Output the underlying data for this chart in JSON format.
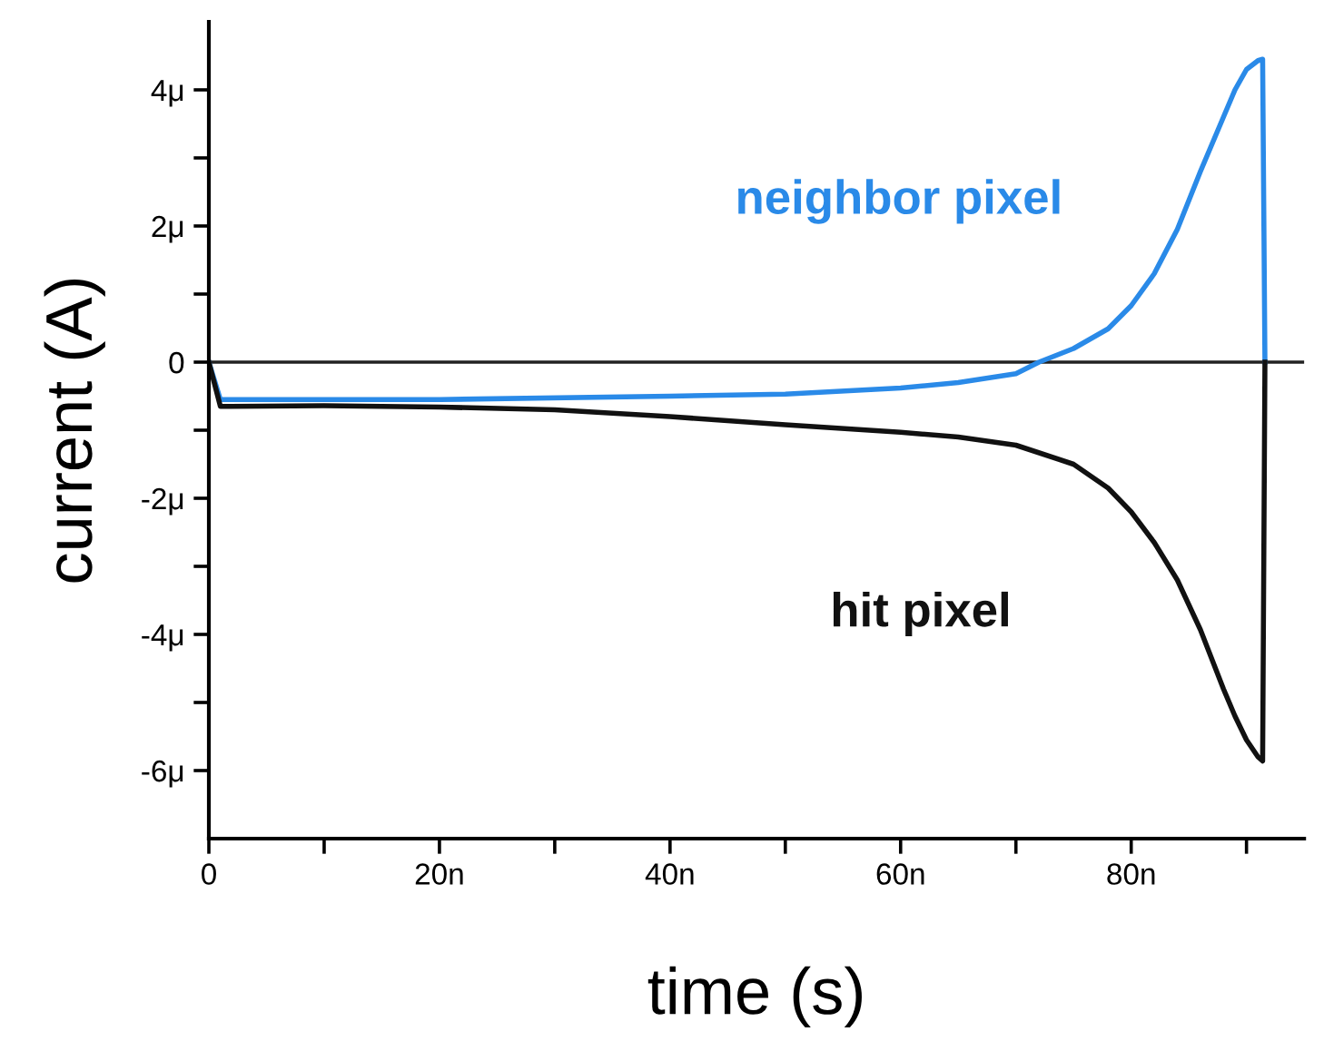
{
  "chart_data": {
    "type": "line",
    "xlabel": "time (s)",
    "ylabel": "current (A)",
    "xlim": [
      0,
      95
    ],
    "ylim": [
      -7,
      5
    ],
    "xticks": [
      {
        "value": 0,
        "label": "0"
      },
      {
        "value": 10,
        "label": null
      },
      {
        "value": 20,
        "label": "20n"
      },
      {
        "value": 30,
        "label": null
      },
      {
        "value": 40,
        "label": "40n"
      },
      {
        "value": 50,
        "label": null
      },
      {
        "value": 60,
        "label": "60n"
      },
      {
        "value": 70,
        "label": null
      },
      {
        "value": 80,
        "label": "80n"
      },
      {
        "value": 90,
        "label": null
      }
    ],
    "yticks": [
      {
        "value": -6,
        "label": "-6μ"
      },
      {
        "value": -5,
        "label": null
      },
      {
        "value": -4,
        "label": "-4μ"
      },
      {
        "value": -3,
        "label": null
      },
      {
        "value": -2,
        "label": "-2μ"
      },
      {
        "value": -1,
        "label": null
      },
      {
        "value": 0,
        "label": "0"
      },
      {
        "value": 1,
        "label": null
      },
      {
        "value": 2,
        "label": "2μ"
      },
      {
        "value": 3,
        "label": null
      },
      {
        "value": 4,
        "label": "4μ"
      }
    ],
    "ref_lines": [
      {
        "axis": "y",
        "value": 0,
        "label": null,
        "color": "#222222"
      }
    ],
    "grid": false,
    "legend": false,
    "marker": "none",
    "line_style": "solid",
    "series": [
      {
        "name": "neighbor pixel",
        "color": "#2a8ae8",
        "x": [
          0,
          1,
          20,
          40,
          50,
          60,
          65,
          70,
          72,
          75,
          78,
          80,
          82,
          84,
          86,
          88,
          89,
          90,
          91,
          91.4,
          91.6
        ],
        "values": [
          0,
          -0.55,
          -0.55,
          -0.5,
          -0.47,
          -0.38,
          -0.3,
          -0.17,
          0,
          0.2,
          0.49,
          0.83,
          1.3,
          1.95,
          2.8,
          3.6,
          4.0,
          4.3,
          4.43,
          4.45,
          0
        ]
      },
      {
        "name": "hit pixel",
        "color": "#111111",
        "x": [
          0,
          1,
          10,
          20,
          30,
          40,
          50,
          60,
          65,
          70,
          75,
          78,
          80,
          82,
          84,
          86,
          88,
          89,
          90,
          91,
          91.4,
          91.6
        ],
        "values": [
          0,
          -0.65,
          -0.64,
          -0.66,
          -0.7,
          -0.8,
          -0.92,
          -1.03,
          -1.1,
          -1.22,
          -1.5,
          -1.85,
          -2.2,
          -2.65,
          -3.2,
          -3.93,
          -4.8,
          -5.2,
          -5.55,
          -5.8,
          -5.86,
          0
        ]
      }
    ]
  }
}
